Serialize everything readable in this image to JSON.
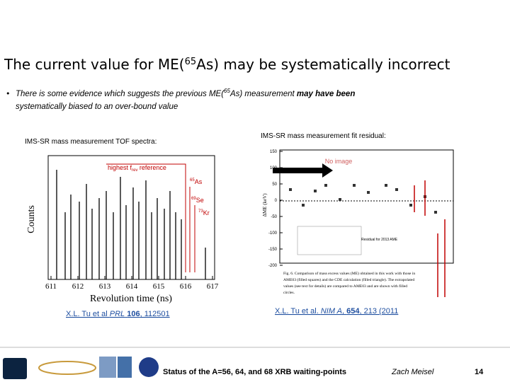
{
  "title": {
    "before": "The current value for ME(",
    "sup": "65",
    "after": "As) may be systematically incorrect"
  },
  "bullet": {
    "line1_a": "There is some evidence which suggests the previous ME(",
    "sup": "65",
    "line1_b": "As) measurement ",
    "line1_bold": "may have been",
    "line2": "systematically biased to an over-bound value"
  },
  "left_panel": {
    "heading": "IMS-SR mass measurement TOF spectra:",
    "annotations": {
      "reference": "highest f",
      "reference_sub": "rev",
      "reference_rest": " reference",
      "as_mass": "65",
      "as": "As",
      "se_mass": "69",
      "se": "Se",
      "kr_mass": "73",
      "kr": "Kr"
    },
    "x_label": "Revolution time (ns)",
    "y_label": "Counts",
    "x_ticks": [
      "611",
      "612",
      "613",
      "614",
      "615",
      "616",
      "617"
    ],
    "citation": {
      "authors": "X.L. Tu et al ",
      "journal": "PRL",
      "volume": "106",
      "pages": ", 112501"
    }
  },
  "right_panel": {
    "heading": "IMS-SR mass measurement fit residual:",
    "placeholder": "No image",
    "y_label": "ΔME (keV)",
    "y_ticks": [
      "150",
      "100",
      "50",
      "0",
      "-50",
      "-100",
      "-150",
      "-200"
    ],
    "note": "Residual for 2013 AME",
    "caption": [
      "Fig. 6. Comparison of mass excess values (ME) obtained in this work with those in",
      "AME03 (filled squares) and the CDE calculation (filled triangle). The extrapolated",
      "values (see text for details) are compared to AME03 and are shown with filled",
      "circles."
    ],
    "citation": {
      "authors": "X.L. Tu et al. ",
      "journal": "NIM A",
      "volume": "654",
      "pages": ", 213 (2011"
    }
  },
  "footer": {
    "status": "Status of the A=56, 64, and 68 XRB waiting-points",
    "author": "Zach Meisel",
    "page": "14"
  }
}
